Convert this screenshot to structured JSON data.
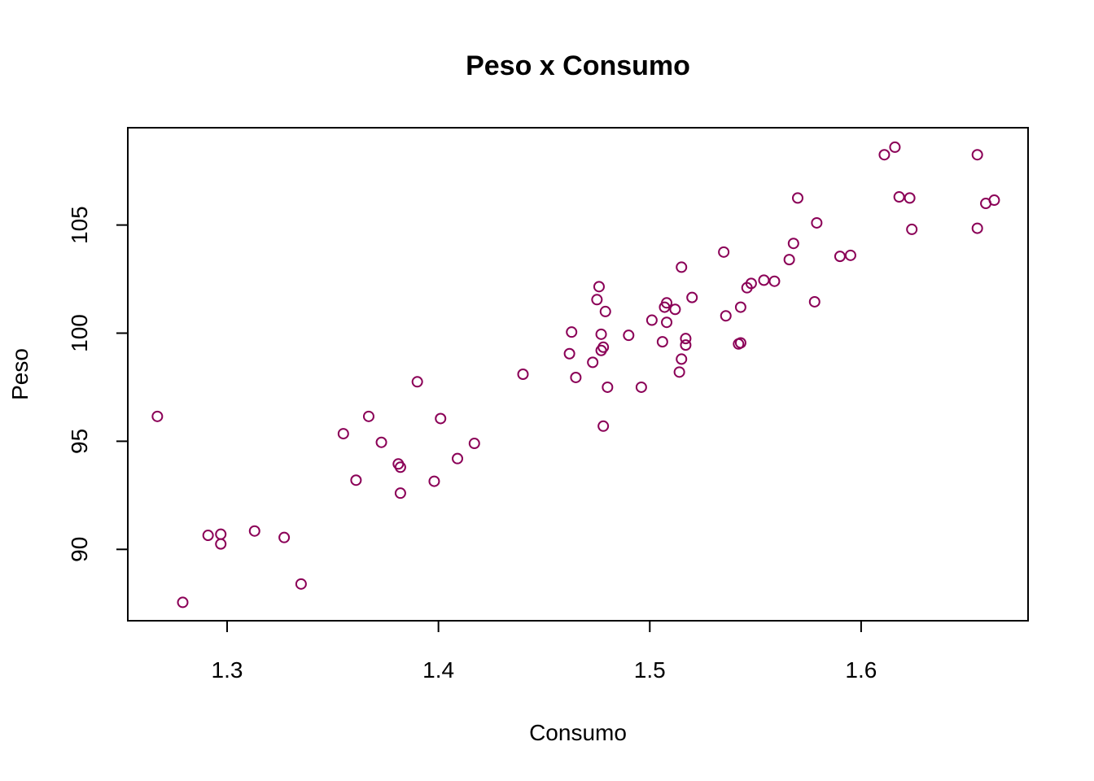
{
  "chart_data": {
    "type": "scatter",
    "title": "Peso x Consumo",
    "xlabel": "Consumo",
    "ylabel": "Peso",
    "xlim": [
      1.253,
      1.679
    ],
    "ylim": [
      86.7,
      109.5
    ],
    "xticks": [
      "1.3",
      "1.4",
      "1.5",
      "1.6"
    ],
    "yticks": [
      "90",
      "95",
      "100",
      "105"
    ],
    "grid": false,
    "legend": "none",
    "point_color": "#8B0057",
    "series": [
      {
        "points": [
          [
            1.267,
            96.15
          ],
          [
            1.279,
            87.55
          ],
          [
            1.291,
            90.65
          ],
          [
            1.297,
            90.7
          ],
          [
            1.297,
            90.25
          ],
          [
            1.313,
            90.85
          ],
          [
            1.327,
            90.55
          ],
          [
            1.335,
            88.4
          ],
          [
            1.355,
            95.35
          ],
          [
            1.361,
            93.2
          ],
          [
            1.367,
            96.15
          ],
          [
            1.373,
            94.95
          ],
          [
            1.381,
            93.95
          ],
          [
            1.382,
            93.8
          ],
          [
            1.382,
            92.6
          ],
          [
            1.39,
            97.75
          ],
          [
            1.398,
            93.15
          ],
          [
            1.401,
            96.05
          ],
          [
            1.409,
            94.2
          ],
          [
            1.417,
            94.9
          ],
          [
            1.44,
            98.1
          ],
          [
            1.462,
            99.05
          ],
          [
            1.463,
            100.05
          ],
          [
            1.465,
            97.95
          ],
          [
            1.473,
            98.65
          ],
          [
            1.475,
            101.55
          ],
          [
            1.476,
            102.15
          ],
          [
            1.477,
            99.2
          ],
          [
            1.477,
            99.95
          ],
          [
            1.478,
            99.35
          ],
          [
            1.478,
            95.7
          ],
          [
            1.479,
            101.0
          ],
          [
            1.48,
            97.5
          ],
          [
            1.49,
            99.9
          ],
          [
            1.496,
            97.5
          ],
          [
            1.501,
            100.6
          ],
          [
            1.506,
            99.6
          ],
          [
            1.507,
            101.2
          ],
          [
            1.508,
            101.4
          ],
          [
            1.508,
            100.5
          ],
          [
            1.512,
            101.1
          ],
          [
            1.514,
            98.2
          ],
          [
            1.515,
            103.05
          ],
          [
            1.515,
            98.8
          ],
          [
            1.517,
            99.75
          ],
          [
            1.517,
            99.45
          ],
          [
            1.52,
            101.65
          ],
          [
            1.535,
            103.75
          ],
          [
            1.536,
            100.8
          ],
          [
            1.542,
            99.5
          ],
          [
            1.543,
            99.55
          ],
          [
            1.543,
            101.2
          ],
          [
            1.546,
            102.1
          ],
          [
            1.548,
            102.3
          ],
          [
            1.554,
            102.45
          ],
          [
            1.559,
            102.4
          ],
          [
            1.566,
            103.4
          ],
          [
            1.568,
            104.15
          ],
          [
            1.57,
            106.25
          ],
          [
            1.578,
            101.45
          ],
          [
            1.579,
            105.1
          ],
          [
            1.59,
            103.55
          ],
          [
            1.595,
            103.6
          ],
          [
            1.611,
            108.25
          ],
          [
            1.616,
            108.6
          ],
          [
            1.618,
            106.3
          ],
          [
            1.623,
            106.25
          ],
          [
            1.624,
            104.8
          ],
          [
            1.655,
            108.25
          ],
          [
            1.655,
            104.85
          ],
          [
            1.659,
            106.0
          ],
          [
            1.663,
            106.15
          ]
        ]
      }
    ]
  }
}
